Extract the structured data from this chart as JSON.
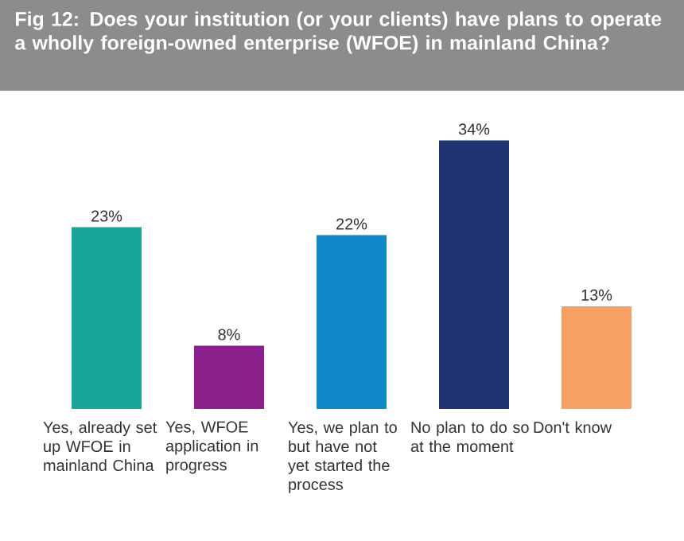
{
  "chart_data": {
    "type": "bar",
    "title": "Fig 12: Does your institution (or your clients) have plans to operate a wholly foreign-owned enterprise (WFOE) in mainland China?",
    "categories": [
      "Yes, already set up WFOE in mainland China",
      "Yes, WFOE application in progress",
      "Yes, we plan to but have not yet started the process",
      "No plan to do so at the moment",
      "Don't know"
    ],
    "values": [
      23,
      8,
      22,
      34,
      13
    ],
    "value_labels": [
      "23%",
      "8%",
      "22%",
      "34%",
      "13%"
    ],
    "colors": [
      "#1aa59a",
      "#8b1f8c",
      "#1087c8",
      "#1f3470",
      "#f7a064"
    ]
  }
}
